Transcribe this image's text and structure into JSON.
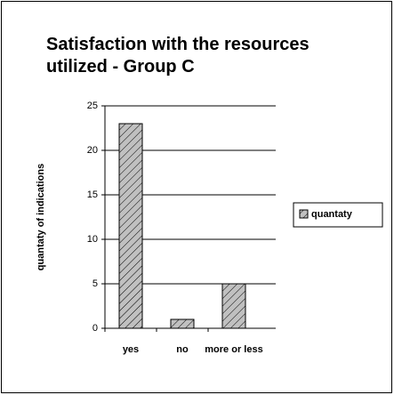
{
  "chart_data": {
    "type": "bar",
    "title": "Satisfaction with the resources utilized - Group C",
    "y_label": "quantaty of indications",
    "categories": [
      "yes",
      "no",
      "more or less"
    ],
    "series": [
      {
        "name": "quantaty",
        "color": "#c0c0c0",
        "values": [
          23,
          1,
          5
        ]
      }
    ],
    "ylim": [
      0,
      25
    ],
    "yticks": [
      0,
      5,
      10,
      15,
      20,
      25
    ],
    "grid": true,
    "legend": "right"
  }
}
